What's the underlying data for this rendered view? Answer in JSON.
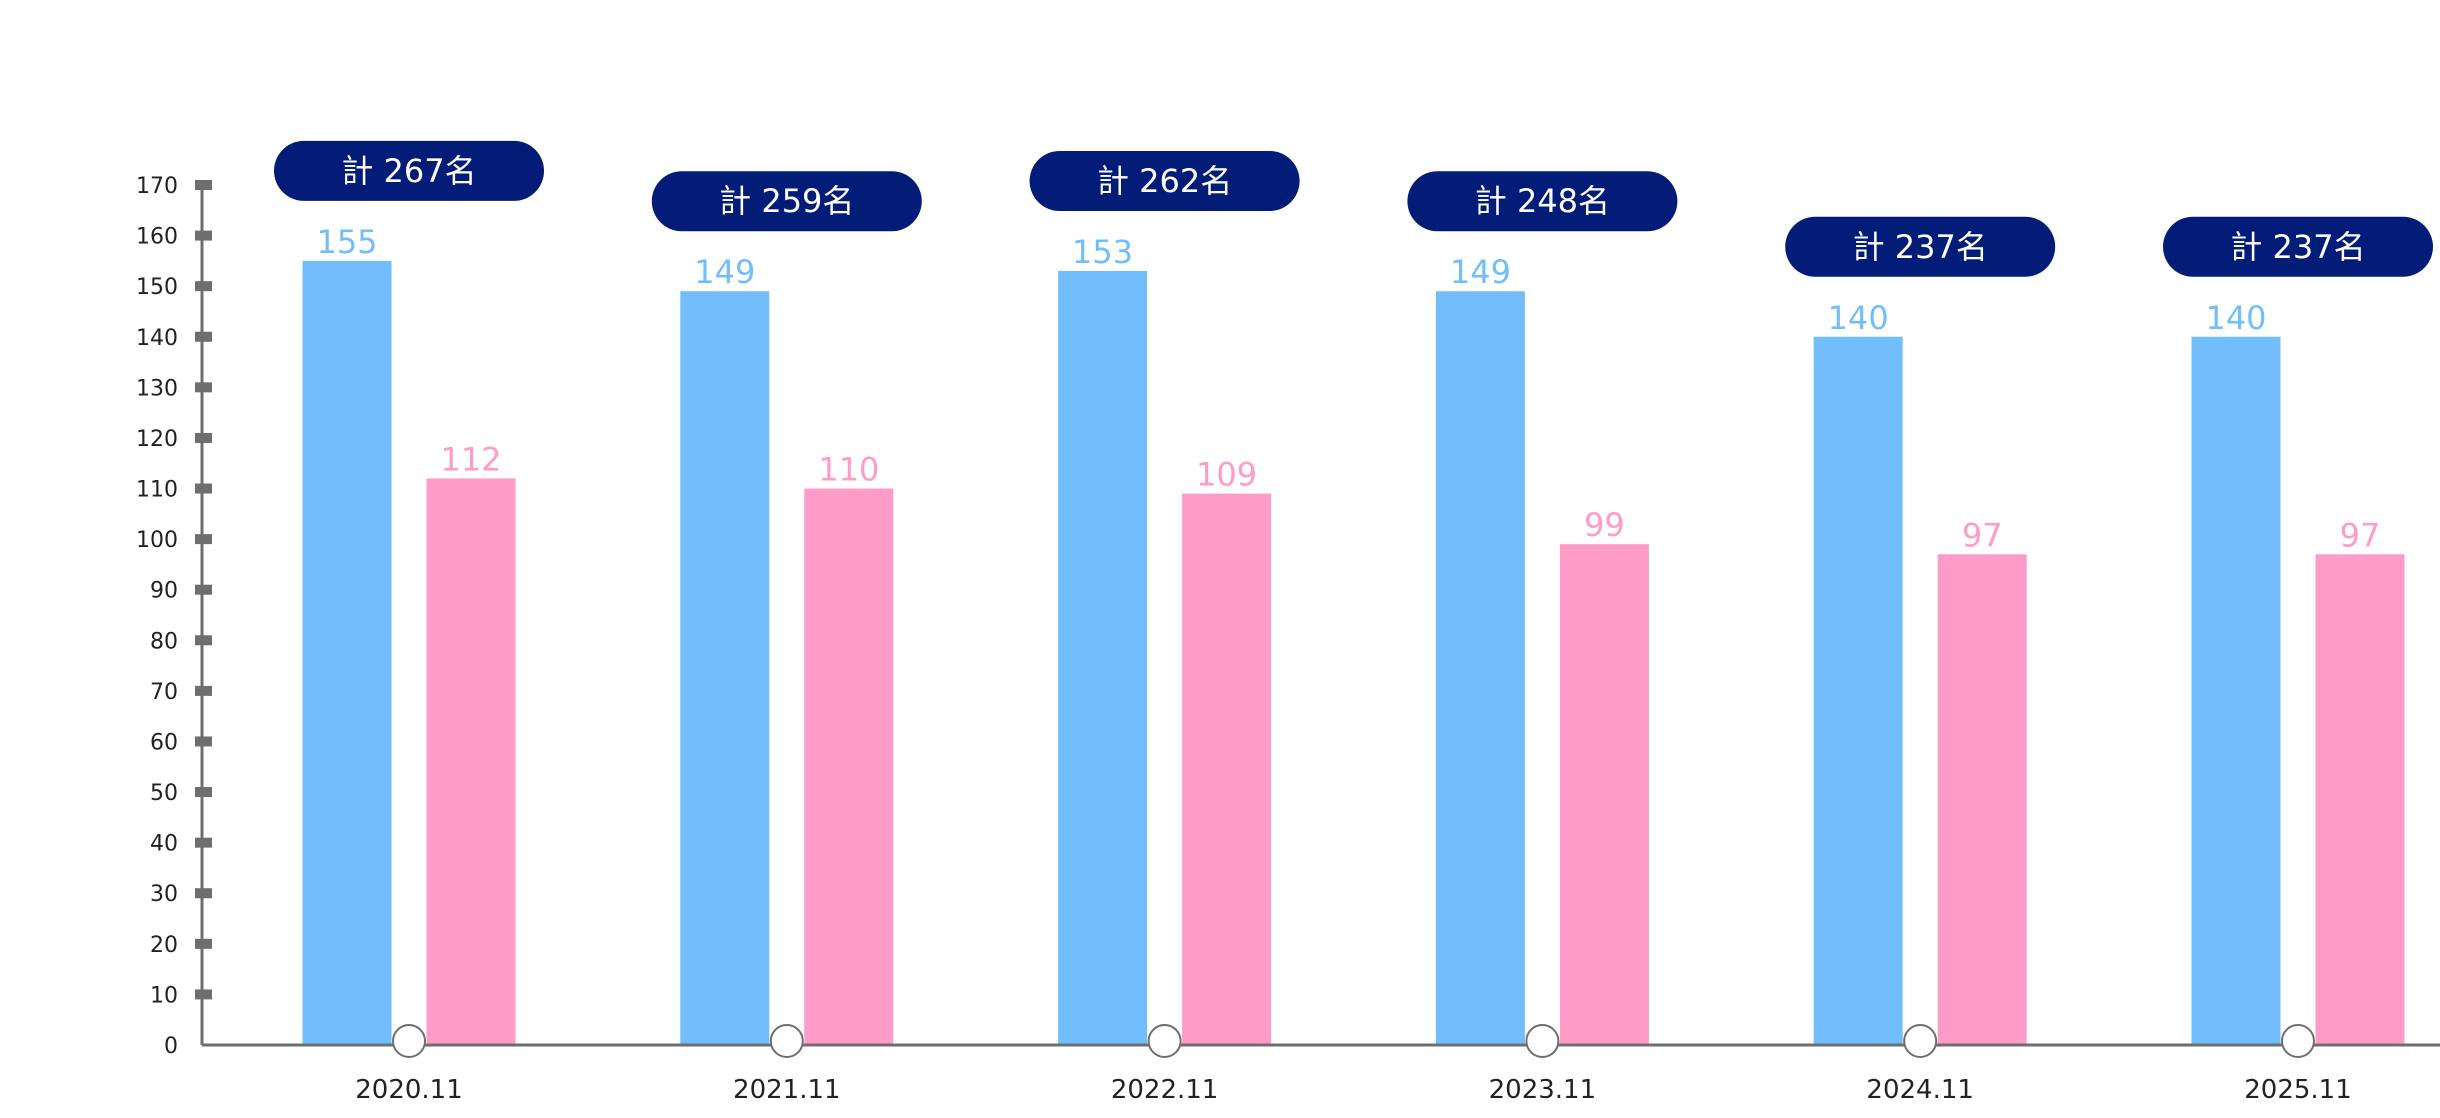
{
  "colors": {
    "series1": "#72befc",
    "series2": "#fe9bc8",
    "pill": "#021c78",
    "axis": "#6e6e6e"
  },
  "chart_data": {
    "type": "bar",
    "categories": [
      "2020.11",
      "2021.11",
      "2022.11",
      "2023.11",
      "2024.11",
      "2025.11"
    ],
    "series": [
      {
        "values": [
          155,
          149,
          153,
          149,
          140,
          140
        ]
      },
      {
        "values": [
          112,
          110,
          109,
          99,
          97,
          97
        ]
      }
    ],
    "totals": [
      "計 267名",
      "計 259名",
      "計 262名",
      "計 248名",
      "計 237名",
      "計 237名"
    ],
    "yticks": [
      0,
      10,
      20,
      30,
      40,
      50,
      60,
      70,
      80,
      90,
      100,
      110,
      120,
      130,
      140,
      150,
      160,
      170
    ],
    "ylim": [
      0,
      170
    ],
    "grid": false,
    "legend": "none"
  }
}
